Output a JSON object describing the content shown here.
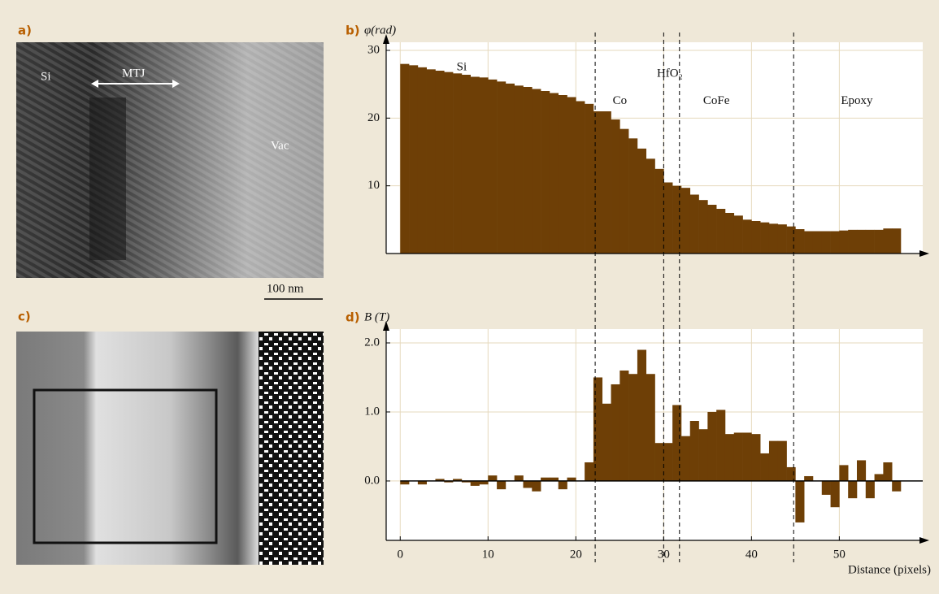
{
  "panels": {
    "a": {
      "label": "a)",
      "annotations": [
        "Si",
        "MTJ",
        "Vac"
      ],
      "scale_bar": "100 nm"
    },
    "c": {
      "label": "c)"
    }
  },
  "boundaries": [
    22.2,
    30,
    31.8,
    44.8
  ],
  "chart_data": [
    {
      "type": "bar",
      "panel_label": "b)",
      "ylabel": "φ(rad)",
      "color": "#6e3f06",
      "x": [
        0,
        1,
        2,
        3,
        4,
        5,
        6,
        7,
        8,
        9,
        10,
        11,
        12,
        13,
        14,
        15,
        16,
        17,
        18,
        19,
        20,
        21,
        22,
        23,
        24,
        25,
        26,
        27,
        28,
        29,
        30,
        31,
        32,
        33,
        34,
        35,
        36,
        37,
        38,
        39,
        40,
        41,
        42,
        43,
        44,
        45,
        46,
        47,
        48,
        49,
        50,
        51,
        52,
        53,
        54,
        55,
        56
      ],
      "values": [
        28.0,
        27.8,
        27.5,
        27.2,
        27.0,
        26.8,
        26.6,
        26.4,
        26.1,
        26.0,
        25.7,
        25.4,
        25.1,
        24.8,
        24.6,
        24.3,
        24.0,
        23.7,
        23.4,
        23.1,
        22.5,
        22.1,
        21.0,
        21.0,
        19.8,
        18.4,
        17.0,
        15.5,
        14.0,
        12.5,
        10.5,
        10.0,
        9.7,
        8.7,
        7.9,
        7.2,
        6.6,
        6.0,
        5.6,
        5.0,
        4.8,
        4.6,
        4.4,
        4.3,
        4.0,
        3.6,
        3.3,
        3.3,
        3.3,
        3.3,
        3.4,
        3.5,
        3.5,
        3.5,
        3.5,
        3.7,
        3.7
      ],
      "xlim": [
        -1.6,
        59.5
      ],
      "ylim": [
        0,
        31.2
      ],
      "yticks": [
        10,
        20,
        30
      ],
      "xticks": [
        0,
        10,
        20,
        30,
        40,
        50
      ],
      "xtick_labels": false,
      "grid": true,
      "annotations": [
        {
          "text": "Si",
          "x": 7,
          "y": 27.5
        },
        {
          "text": "Co",
          "x": 25,
          "y": 22.5
        },
        {
          "text": "HfO₂",
          "x": 30.7,
          "y": 26.5
        },
        {
          "text": "CoFe",
          "x": 36,
          "y": 22.5
        },
        {
          "text": "Epoxy",
          "x": 52,
          "y": 22.5
        }
      ]
    },
    {
      "type": "bar",
      "panel_label": "d)",
      "ylabel": "B (T)",
      "xlabel": "Distance (pixels)",
      "color": "#6e3f06",
      "x": [
        0,
        1,
        2,
        3,
        4,
        5,
        6,
        7,
        8,
        9,
        10,
        11,
        12,
        13,
        14,
        15,
        16,
        17,
        18,
        19,
        20,
        21,
        22,
        23,
        24,
        25,
        26,
        27,
        28,
        29,
        30,
        31,
        32,
        33,
        34,
        35,
        36,
        37,
        38,
        39,
        40,
        41,
        42,
        43,
        44,
        45,
        46,
        47,
        48,
        49,
        50,
        51,
        52,
        53,
        54,
        55,
        56
      ],
      "values": [
        -0.05,
        0,
        -0.05,
        0,
        0.03,
        -0.02,
        0.03,
        -0.02,
        -0.07,
        -0.05,
        0.08,
        -0.12,
        0,
        0.08,
        -0.1,
        -0.15,
        0.05,
        0.05,
        -0.12,
        0.05,
        0,
        0.27,
        1.5,
        1.12,
        1.4,
        1.6,
        1.55,
        1.9,
        1.55,
        0.55,
        0.55,
        1.1,
        0.65,
        0.87,
        0.75,
        1.0,
        1.03,
        0.68,
        0.7,
        0.7,
        0.68,
        0.4,
        0.58,
        0.58,
        0.2,
        -0.6,
        0.07,
        0,
        -0.2,
        -0.38,
        0.23,
        -0.25,
        0.3,
        -0.25,
        0.1,
        0.27,
        -0.15
      ],
      "xlim": [
        -1.6,
        59.5
      ],
      "ylim": [
        -0.86,
        2.2
      ],
      "yticks": [
        {
          "value": 0,
          "label": "0.0"
        },
        {
          "value": 1,
          "label": "1.0"
        },
        {
          "value": 2,
          "label": "2.0"
        }
      ],
      "xticks": [
        0,
        10,
        20,
        30,
        40,
        50
      ],
      "xtick_labels": true,
      "grid": true,
      "zero_line": true
    }
  ]
}
